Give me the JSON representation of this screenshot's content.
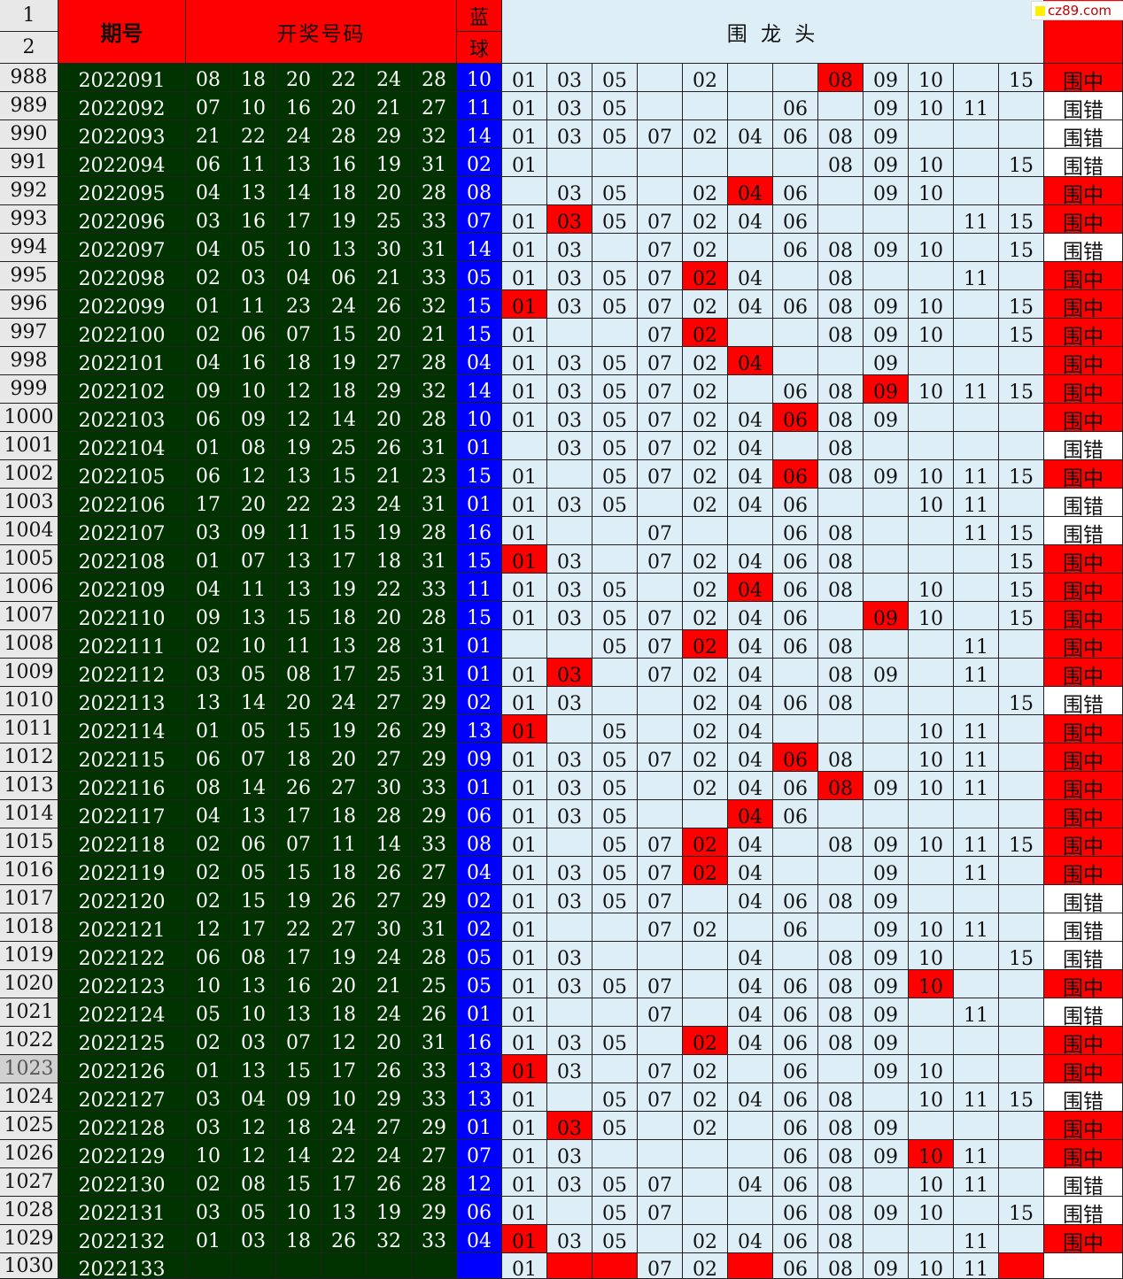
{
  "header": {
    "row_nums": [
      "1",
      "2"
    ],
    "period_label": "期号",
    "draw_label": "开奖号码",
    "blue_top": "蓝",
    "blue_bottom": "球",
    "group_label": "围 龙 头"
  },
  "logo_text": "cz89.com",
  "selected_row": "1023",
  "colors": {
    "green": "#003300",
    "blue": "#0000ff",
    "red": "#ff0000",
    "light": "#ddeef7"
  },
  "rows": [
    {
      "n": "988",
      "p": "2022091",
      "balls": [
        "08",
        "18",
        "20",
        "22",
        "24",
        "28"
      ],
      "blue": "10",
      "picks": [
        "01",
        "03",
        "05",
        "",
        "02",
        "",
        "",
        "08",
        "09",
        "10",
        "",
        "15"
      ],
      "hit": 7,
      "result": "围中"
    },
    {
      "n": "989",
      "p": "2022092",
      "balls": [
        "07",
        "10",
        "16",
        "20",
        "21",
        "27"
      ],
      "blue": "11",
      "picks": [
        "01",
        "03",
        "05",
        "",
        "",
        "",
        "06",
        "",
        "09",
        "10",
        "11",
        ""
      ],
      "hit": -1,
      "result": "围错"
    },
    {
      "n": "990",
      "p": "2022093",
      "balls": [
        "21",
        "22",
        "24",
        "28",
        "29",
        "32"
      ],
      "blue": "14",
      "picks": [
        "01",
        "03",
        "05",
        "07",
        "02",
        "04",
        "06",
        "08",
        "09",
        "",
        "",
        ""
      ],
      "hit": -1,
      "result": "围错"
    },
    {
      "n": "991",
      "p": "2022094",
      "balls": [
        "06",
        "11",
        "13",
        "16",
        "19",
        "31"
      ],
      "blue": "02",
      "picks": [
        "01",
        "",
        "",
        "",
        "",
        "",
        "",
        "08",
        "09",
        "10",
        "",
        "15"
      ],
      "hit": -1,
      "result": "围错"
    },
    {
      "n": "992",
      "p": "2022095",
      "balls": [
        "04",
        "13",
        "14",
        "18",
        "20",
        "28"
      ],
      "blue": "08",
      "picks": [
        "",
        "03",
        "05",
        "",
        "02",
        "04",
        "06",
        "",
        "09",
        "10",
        "",
        ""
      ],
      "hit": 5,
      "result": "围中"
    },
    {
      "n": "993",
      "p": "2022096",
      "balls": [
        "03",
        "16",
        "17",
        "19",
        "25",
        "33"
      ],
      "blue": "07",
      "picks": [
        "01",
        "03",
        "05",
        "07",
        "02",
        "04",
        "06",
        "",
        "",
        "",
        "11",
        "15"
      ],
      "hit": 1,
      "result": "围中"
    },
    {
      "n": "994",
      "p": "2022097",
      "balls": [
        "04",
        "05",
        "10",
        "13",
        "30",
        "31"
      ],
      "blue": "14",
      "picks": [
        "01",
        "03",
        "",
        "07",
        "02",
        "",
        "06",
        "08",
        "09",
        "10",
        "",
        "15"
      ],
      "hit": -1,
      "result": "围错"
    },
    {
      "n": "995",
      "p": "2022098",
      "balls": [
        "02",
        "03",
        "04",
        "06",
        "21",
        "33"
      ],
      "blue": "05",
      "picks": [
        "01",
        "03",
        "05",
        "07",
        "02",
        "04",
        "",
        "08",
        "",
        "",
        "11",
        ""
      ],
      "hit": 4,
      "result": "围中"
    },
    {
      "n": "996",
      "p": "2022099",
      "balls": [
        "01",
        "11",
        "23",
        "24",
        "26",
        "32"
      ],
      "blue": "15",
      "picks": [
        "01",
        "03",
        "05",
        "07",
        "02",
        "04",
        "06",
        "08",
        "09",
        "10",
        "",
        "15"
      ],
      "hit": 0,
      "result": "围中"
    },
    {
      "n": "997",
      "p": "2022100",
      "balls": [
        "02",
        "06",
        "07",
        "15",
        "20",
        "21"
      ],
      "blue": "15",
      "picks": [
        "01",
        "",
        "",
        "07",
        "02",
        "",
        "",
        "08",
        "09",
        "10",
        "",
        "15"
      ],
      "hit": 4,
      "result": "围中"
    },
    {
      "n": "998",
      "p": "2022101",
      "balls": [
        "04",
        "16",
        "18",
        "19",
        "27",
        "28"
      ],
      "blue": "04",
      "picks": [
        "01",
        "03",
        "05",
        "07",
        "02",
        "04",
        "",
        "",
        "09",
        "",
        "",
        ""
      ],
      "hit": 5,
      "result": "围中"
    },
    {
      "n": "999",
      "p": "2022102",
      "balls": [
        "09",
        "10",
        "12",
        "18",
        "29",
        "32"
      ],
      "blue": "14",
      "picks": [
        "01",
        "03",
        "05",
        "07",
        "02",
        "",
        "06",
        "08",
        "09",
        "10",
        "11",
        "15"
      ],
      "hit": 8,
      "result": "围中"
    },
    {
      "n": "1000",
      "p": "2022103",
      "balls": [
        "06",
        "09",
        "12",
        "14",
        "20",
        "28"
      ],
      "blue": "10",
      "picks": [
        "01",
        "03",
        "05",
        "07",
        "02",
        "04",
        "06",
        "08",
        "09",
        "",
        "",
        ""
      ],
      "hit": 6,
      "result": "围中"
    },
    {
      "n": "1001",
      "p": "2022104",
      "balls": [
        "01",
        "08",
        "19",
        "25",
        "26",
        "31"
      ],
      "blue": "01",
      "picks": [
        "",
        "03",
        "05",
        "07",
        "02",
        "04",
        "",
        "08",
        "",
        "",
        "",
        ""
      ],
      "hit": -1,
      "result": "围错"
    },
    {
      "n": "1002",
      "p": "2022105",
      "balls": [
        "06",
        "12",
        "13",
        "15",
        "21",
        "23"
      ],
      "blue": "15",
      "picks": [
        "01",
        "",
        "05",
        "07",
        "02",
        "04",
        "06",
        "08",
        "09",
        "10",
        "11",
        "15"
      ],
      "hit": 6,
      "result": "围中"
    },
    {
      "n": "1003",
      "p": "2022106",
      "balls": [
        "17",
        "20",
        "22",
        "23",
        "24",
        "31"
      ],
      "blue": "01",
      "picks": [
        "01",
        "03",
        "05",
        "",
        "02",
        "04",
        "06",
        "",
        "",
        "10",
        "11",
        ""
      ],
      "hit": -1,
      "result": "围错"
    },
    {
      "n": "1004",
      "p": "2022107",
      "balls": [
        "03",
        "09",
        "11",
        "15",
        "19",
        "28"
      ],
      "blue": "16",
      "picks": [
        "01",
        "",
        "",
        "07",
        "",
        "",
        "06",
        "08",
        "",
        "",
        "11",
        "15"
      ],
      "hit": -1,
      "result": "围错"
    },
    {
      "n": "1005",
      "p": "2022108",
      "balls": [
        "01",
        "07",
        "13",
        "17",
        "18",
        "31"
      ],
      "blue": "15",
      "picks": [
        "01",
        "03",
        "",
        "07",
        "02",
        "04",
        "06",
        "08",
        "",
        "",
        "",
        "15"
      ],
      "hit": 0,
      "result": "围中"
    },
    {
      "n": "1006",
      "p": "2022109",
      "balls": [
        "04",
        "11",
        "13",
        "19",
        "22",
        "33"
      ],
      "blue": "11",
      "picks": [
        "01",
        "03",
        "05",
        "",
        "02",
        "04",
        "06",
        "08",
        "",
        "10",
        "",
        "15"
      ],
      "hit": 5,
      "result": "围中"
    },
    {
      "n": "1007",
      "p": "2022110",
      "balls": [
        "09",
        "13",
        "15",
        "18",
        "20",
        "28"
      ],
      "blue": "15",
      "picks": [
        "01",
        "03",
        "05",
        "07",
        "02",
        "04",
        "06",
        "",
        "09",
        "10",
        "",
        "15"
      ],
      "hit": 8,
      "result": "围中"
    },
    {
      "n": "1008",
      "p": "2022111",
      "balls": [
        "02",
        "10",
        "11",
        "13",
        "28",
        "31"
      ],
      "blue": "01",
      "picks": [
        "",
        "",
        "05",
        "07",
        "02",
        "04",
        "06",
        "08",
        "",
        "",
        "11",
        ""
      ],
      "hit": 4,
      "result": "围中"
    },
    {
      "n": "1009",
      "p": "2022112",
      "balls": [
        "03",
        "05",
        "08",
        "17",
        "25",
        "31"
      ],
      "blue": "01",
      "picks": [
        "01",
        "03",
        "",
        "07",
        "02",
        "04",
        "",
        "08",
        "09",
        "",
        "11",
        ""
      ],
      "hit": 1,
      "result": "围中"
    },
    {
      "n": "1010",
      "p": "2022113",
      "balls": [
        "13",
        "14",
        "20",
        "24",
        "27",
        "29"
      ],
      "blue": "02",
      "picks": [
        "01",
        "03",
        "",
        "",
        "02",
        "04",
        "06",
        "08",
        "",
        "",
        "",
        "15"
      ],
      "hit": -1,
      "result": "围错"
    },
    {
      "n": "1011",
      "p": "2022114",
      "balls": [
        "01",
        "05",
        "15",
        "19",
        "26",
        "29"
      ],
      "blue": "13",
      "picks": [
        "01",
        "",
        "05",
        "",
        "02",
        "04",
        "",
        "",
        "",
        "10",
        "11",
        ""
      ],
      "hit": 0,
      "result": "围中"
    },
    {
      "n": "1012",
      "p": "2022115",
      "balls": [
        "06",
        "07",
        "18",
        "20",
        "27",
        "29"
      ],
      "blue": "09",
      "picks": [
        "01",
        "03",
        "05",
        "07",
        "02",
        "04",
        "06",
        "08",
        "",
        "10",
        "11",
        ""
      ],
      "hit": 6,
      "result": "围中"
    },
    {
      "n": "1013",
      "p": "2022116",
      "balls": [
        "08",
        "14",
        "26",
        "27",
        "30",
        "33"
      ],
      "blue": "01",
      "picks": [
        "01",
        "03",
        "05",
        "",
        "02",
        "04",
        "06",
        "08",
        "09",
        "10",
        "11",
        ""
      ],
      "hit": 7,
      "result": "围中"
    },
    {
      "n": "1014",
      "p": "2022117",
      "balls": [
        "04",
        "13",
        "17",
        "18",
        "28",
        "29"
      ],
      "blue": "06",
      "picks": [
        "01",
        "03",
        "05",
        "",
        "",
        "04",
        "06",
        "",
        "",
        "",
        "",
        ""
      ],
      "hit": 5,
      "result": "围中"
    },
    {
      "n": "1015",
      "p": "2022118",
      "balls": [
        "02",
        "06",
        "07",
        "11",
        "14",
        "33"
      ],
      "blue": "08",
      "picks": [
        "01",
        "",
        "05",
        "07",
        "02",
        "04",
        "",
        "08",
        "09",
        "10",
        "11",
        "15"
      ],
      "hit": 4,
      "result": "围中"
    },
    {
      "n": "1016",
      "p": "2022119",
      "balls": [
        "02",
        "05",
        "15",
        "18",
        "26",
        "27"
      ],
      "blue": "04",
      "picks": [
        "01",
        "03",
        "05",
        "07",
        "02",
        "04",
        "",
        "",
        "09",
        "",
        "11",
        ""
      ],
      "hit": 4,
      "result": "围中"
    },
    {
      "n": "1017",
      "p": "2022120",
      "balls": [
        "02",
        "15",
        "19",
        "26",
        "27",
        "29"
      ],
      "blue": "02",
      "picks": [
        "01",
        "03",
        "05",
        "07",
        "",
        "04",
        "06",
        "08",
        "09",
        "",
        "",
        ""
      ],
      "hit": -1,
      "result": "围错"
    },
    {
      "n": "1018",
      "p": "2022121",
      "balls": [
        "12",
        "17",
        "22",
        "27",
        "30",
        "31"
      ],
      "blue": "02",
      "picks": [
        "01",
        "",
        "",
        "07",
        "02",
        "",
        "06",
        "",
        "09",
        "10",
        "11",
        ""
      ],
      "hit": -1,
      "result": "围错"
    },
    {
      "n": "1019",
      "p": "2022122",
      "balls": [
        "06",
        "08",
        "17",
        "19",
        "24",
        "28"
      ],
      "blue": "05",
      "picks": [
        "01",
        "03",
        "",
        "",
        "",
        "04",
        "",
        "08",
        "09",
        "10",
        "",
        "15"
      ],
      "hit": -1,
      "result": "围错"
    },
    {
      "n": "1020",
      "p": "2022123",
      "balls": [
        "10",
        "13",
        "16",
        "20",
        "21",
        "25"
      ],
      "blue": "05",
      "picks": [
        "01",
        "03",
        "05",
        "07",
        "",
        "04",
        "06",
        "08",
        "09",
        "10",
        "",
        ""
      ],
      "hit": 9,
      "result": "围中"
    },
    {
      "n": "1021",
      "p": "2022124",
      "balls": [
        "05",
        "10",
        "13",
        "18",
        "24",
        "26"
      ],
      "blue": "01",
      "picks": [
        "01",
        "",
        "",
        "07",
        "",
        "04",
        "06",
        "08",
        "09",
        "",
        "11",
        ""
      ],
      "hit": -1,
      "result": "围错"
    },
    {
      "n": "1022",
      "p": "2022125",
      "balls": [
        "02",
        "03",
        "07",
        "12",
        "20",
        "31"
      ],
      "blue": "16",
      "picks": [
        "01",
        "03",
        "05",
        "",
        "02",
        "04",
        "06",
        "08",
        "09",
        "",
        "",
        ""
      ],
      "hit": 4,
      "result": "围中"
    },
    {
      "n": "1023",
      "p": "2022126",
      "balls": [
        "01",
        "13",
        "15",
        "17",
        "26",
        "33"
      ],
      "blue": "13",
      "picks": [
        "01",
        "03",
        "",
        "07",
        "02",
        "",
        "06",
        "",
        "09",
        "10",
        "",
        ""
      ],
      "hit": 0,
      "result": "围中"
    },
    {
      "n": "1024",
      "p": "2022127",
      "balls": [
        "03",
        "04",
        "09",
        "10",
        "29",
        "33"
      ],
      "blue": "13",
      "picks": [
        "01",
        "",
        "05",
        "07",
        "02",
        "04",
        "06",
        "08",
        "",
        "10",
        "11",
        "15"
      ],
      "hit": -1,
      "result": "围错"
    },
    {
      "n": "1025",
      "p": "2022128",
      "balls": [
        "03",
        "12",
        "18",
        "24",
        "27",
        "29"
      ],
      "blue": "01",
      "picks": [
        "01",
        "03",
        "05",
        "",
        "02",
        "",
        "06",
        "08",
        "09",
        "",
        "",
        ""
      ],
      "hit": 1,
      "result": "围中"
    },
    {
      "n": "1026",
      "p": "2022129",
      "balls": [
        "10",
        "12",
        "14",
        "22",
        "24",
        "27"
      ],
      "blue": "07",
      "picks": [
        "01",
        "03",
        "",
        "",
        "",
        "",
        "06",
        "08",
        "09",
        "10",
        "11",
        ""
      ],
      "hit": 9,
      "result": "围中"
    },
    {
      "n": "1027",
      "p": "2022130",
      "balls": [
        "02",
        "08",
        "15",
        "17",
        "26",
        "28"
      ],
      "blue": "12",
      "picks": [
        "01",
        "03",
        "05",
        "07",
        "",
        "04",
        "06",
        "08",
        "",
        "10",
        "11",
        ""
      ],
      "hit": -1,
      "result": "围错"
    },
    {
      "n": "1028",
      "p": "2022131",
      "balls": [
        "03",
        "05",
        "10",
        "13",
        "19",
        "29"
      ],
      "blue": "06",
      "picks": [
        "01",
        "",
        "05",
        "07",
        "",
        "",
        "06",
        "08",
        "09",
        "10",
        "",
        "15"
      ],
      "hit": -1,
      "result": "围错"
    },
    {
      "n": "1029",
      "p": "2022132",
      "balls": [
        "01",
        "03",
        "18",
        "26",
        "32",
        "33"
      ],
      "blue": "04",
      "picks": [
        "01",
        "03",
        "05",
        "",
        "02",
        "04",
        "06",
        "08",
        "",
        "",
        "11",
        ""
      ],
      "hit": 0,
      "result": "围中"
    },
    {
      "n": "1030",
      "p": "2022133",
      "balls": [
        "",
        "",
        "",
        "",
        "",
        ""
      ],
      "blue": "",
      "picks": [
        "01",
        "",
        "",
        "07",
        "02",
        "",
        "06",
        "08",
        "09",
        "10",
        "11",
        ""
      ],
      "hit": -1,
      "redcells": [
        1,
        2,
        5,
        11
      ],
      "result": ""
    }
  ]
}
